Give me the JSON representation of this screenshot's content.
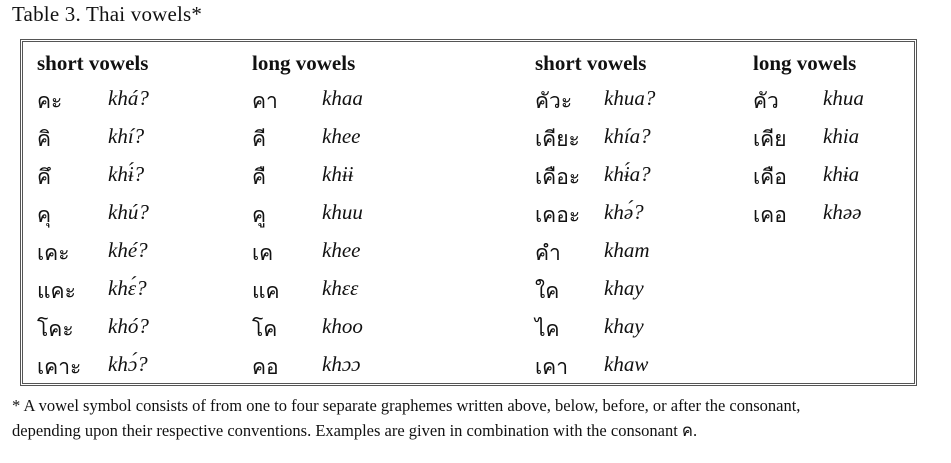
{
  "caption": "Table 3. Thai vowels*",
  "columns": [
    {
      "header": "short vowels",
      "rows": [
        {
          "thai": "คะ",
          "rom": "khá?"
        },
        {
          "thai": "คิ",
          "rom": "khí?"
        },
        {
          "thai": "คึ",
          "rom": "khɨ́?"
        },
        {
          "thai": "คุ",
          "rom": "khú?"
        },
        {
          "thai": "เคะ",
          "rom": "khé?"
        },
        {
          "thai": "แคะ",
          "rom": "khɛ́?"
        },
        {
          "thai": "โคะ",
          "rom": "khó?"
        },
        {
          "thai": "เคาะ",
          "rom": "khɔ́?"
        }
      ]
    },
    {
      "header": "long vowels",
      "rows": [
        {
          "thai": "คา",
          "rom": "khaa"
        },
        {
          "thai": "คี",
          "rom": "khee"
        },
        {
          "thai": "คื",
          "rom": "khɨɨ"
        },
        {
          "thai": "คู",
          "rom": "khuu"
        },
        {
          "thai": "เค",
          "rom": "khee"
        },
        {
          "thai": "แค",
          "rom": "khɛɛ"
        },
        {
          "thai": "โค",
          "rom": "khoo"
        },
        {
          "thai": "คอ",
          "rom": "khɔɔ"
        }
      ]
    },
    {
      "header": "short vowels",
      "rows": [
        {
          "thai": "คัวะ",
          "rom": "khua?"
        },
        {
          "thai": "เคียะ",
          "rom": "khía?"
        },
        {
          "thai": "เคือะ",
          "rom": "khɨ́a?"
        },
        {
          "thai": "เคอะ",
          "rom": "khə́?"
        },
        {
          "thai": "คำ",
          "rom": "kham"
        },
        {
          "thai": "ใค",
          "rom": "khay"
        },
        {
          "thai": "ไค",
          "rom": "khay"
        },
        {
          "thai": "เคา",
          "rom": "khaw"
        }
      ]
    },
    {
      "header": "long vowels",
      "rows": [
        {
          "thai": "คัว",
          "rom": "khua"
        },
        {
          "thai": "เคีย",
          "rom": "khia"
        },
        {
          "thai": "เคือ",
          "rom": "khɨa"
        },
        {
          "thai": "เคอ",
          "rom": "khəə"
        }
      ]
    }
  ],
  "footnote": {
    "line1": "* A vowel symbol consists of from one to four separate graphemes written above, below, before, or after the consonant,",
    "line2": "depending upon their respective conventions. Examples are given in combination with the consonant ค."
  }
}
